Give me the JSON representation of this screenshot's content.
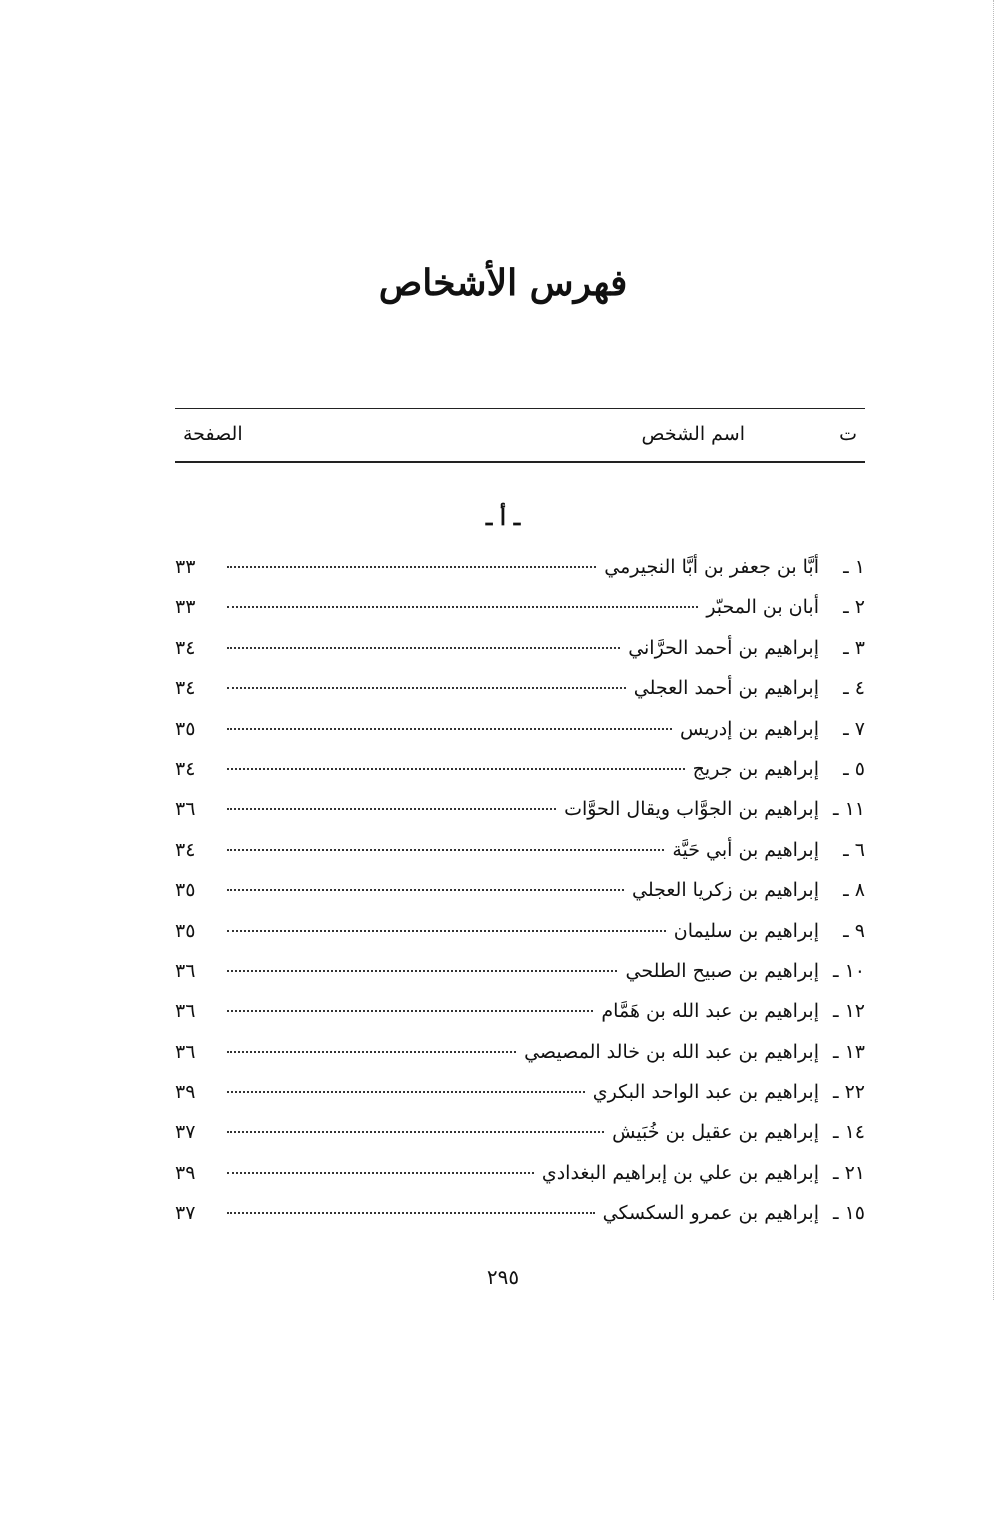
{
  "title": "فهرس الأشخاص",
  "header": {
    "num": "ت",
    "name": "اسم الشخص",
    "page": "الصفحة"
  },
  "section": "ـ أ ـ",
  "entries": [
    {
      "num": "١ ـ",
      "name": "أبَّا بن جعفر بن أبَّا النجيرمي",
      "page": "٣٣"
    },
    {
      "num": "٢ ـ",
      "name": "أبان بن المحبّر",
      "page": "٣٣"
    },
    {
      "num": "٣ ـ",
      "name": "إبراهيم بن أحمد الحرَّاني",
      "page": "٣٤"
    },
    {
      "num": "٤ ـ",
      "name": "إبراهيم بن أحمد العجلي",
      "page": "٣٤"
    },
    {
      "num": "٧ ـ",
      "name": "إبراهيم بن إدريس",
      "page": "٣٥"
    },
    {
      "num": "٥ ـ",
      "name": "إبراهيم بن جريج",
      "page": "٣٤"
    },
    {
      "num": "١١ ـ",
      "name": "إبراهيم بن الجوَّاب ويقال الحوَّات",
      "page": "٣٦"
    },
    {
      "num": "٦ ـ",
      "name": "إبراهيم بن أبي حَيَّة",
      "page": "٣٤"
    },
    {
      "num": "٨ ـ",
      "name": "إبراهيم بن زكريا العجلي",
      "page": "٣٥"
    },
    {
      "num": "٩ ـ",
      "name": "إبراهيم بن سليمان",
      "page": "٣٥"
    },
    {
      "num": "١٠ ـ",
      "name": "إبراهيم بن صبيح الطلحي",
      "page": "٣٦"
    },
    {
      "num": "١٢ ـ",
      "name": "إبراهيم بن عبد الله بن هَمَّام",
      "page": "٣٦"
    },
    {
      "num": "١٣ ـ",
      "name": "إبراهيم بن عبد الله بن خالد المصيصي",
      "page": "٣٦"
    },
    {
      "num": "٢٢ ـ",
      "name": "إبراهيم بن عبد الواحد البكري",
      "page": "٣٩"
    },
    {
      "num": "١٤ ـ",
      "name": "إبراهيم بن عقيل بن خُبَيش",
      "page": "٣٧"
    },
    {
      "num": "٢١ ـ",
      "name": "إبراهيم بن علي بن إبراهيم البغدادي",
      "page": "٣٩"
    },
    {
      "num": "١٥ ـ",
      "name": "إبراهيم بن عمرو السكسكي",
      "page": "٣٧"
    }
  ],
  "folio": "٢٩٥"
}
